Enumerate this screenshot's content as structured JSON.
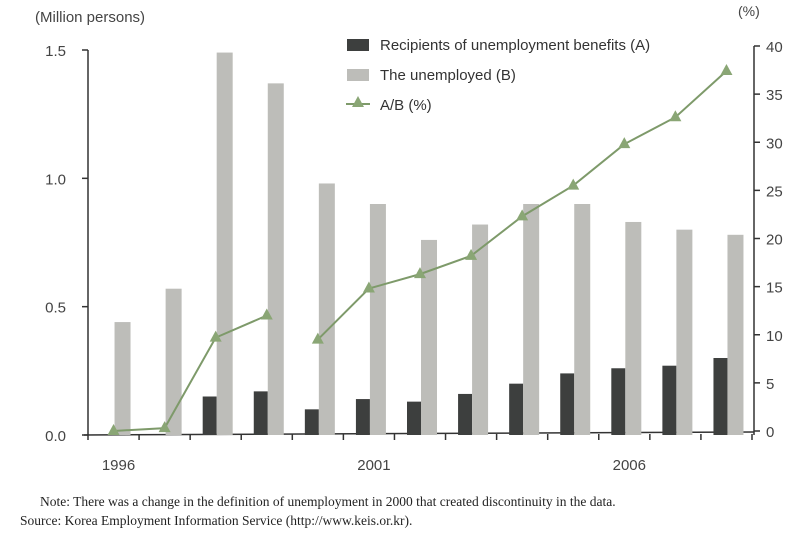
{
  "chart_data": {
    "type": "bar+line",
    "title": "",
    "left_axis_label": "(Million persons)",
    "right_axis_label": "(%)",
    "left_ylim": [
      0,
      1.5
    ],
    "left_ticks": [
      "0.0",
      "0.5",
      "1.0",
      "1.5"
    ],
    "right_ylim": [
      0,
      40
    ],
    "right_ticks": [
      "0",
      "5",
      "10",
      "15",
      "20",
      "25",
      "30",
      "35",
      "40"
    ],
    "categories": [
      "1996",
      "1997",
      "1998",
      "1999",
      "2000",
      "2001",
      "2002",
      "2003",
      "2004",
      "2005",
      "2006",
      "2007",
      "2008"
    ],
    "x_tick_labels": {
      "1996": "1996",
      "2001": "2001",
      "2006": "2006"
    },
    "grid": false,
    "legend_position": "top-right",
    "series": [
      {
        "name": "Recipients of unemployment benefits (A)",
        "type": "bar",
        "axis": "left",
        "color": "#3d3f3e",
        "values": [
          0,
          0,
          0.15,
          0.17,
          0.1,
          0.14,
          0.13,
          0.16,
          0.2,
          0.24,
          0.26,
          0.27,
          0.3
        ]
      },
      {
        "name": "The unemployed (B)",
        "type": "bar",
        "axis": "left",
        "color": "#bdbdb9",
        "values": [
          0.44,
          0.57,
          1.49,
          1.37,
          0.98,
          0.9,
          0.76,
          0.82,
          0.9,
          0.9,
          0.83,
          0.8,
          0.78
        ]
      },
      {
        "name": "A/B (%)",
        "type": "line",
        "axis": "right",
        "color": "#7e9a6a",
        "marker": "triangle",
        "segments": [
          [
            0,
            1,
            2,
            3
          ],
          [
            4,
            5,
            6,
            7,
            8,
            9,
            10,
            11,
            12
          ]
        ],
        "values": [
          0,
          0.3,
          9.7,
          12.0,
          9.5,
          14.8,
          16.3,
          18.2,
          22.3,
          25.5,
          29.8,
          32.6,
          37.4
        ]
      }
    ]
  },
  "legend": {
    "items": [
      {
        "label": "Recipients of unemployment benefits (A)"
      },
      {
        "label": "The unemployed (B)"
      },
      {
        "label": "A/B (%)"
      }
    ]
  },
  "notes": {
    "note": "Note: There was a change in the definition of unemployment in 2000 that created discontinuity in the data.",
    "source": "Source: Korea Employment Information Service (http://www.keis.or.kr)."
  }
}
